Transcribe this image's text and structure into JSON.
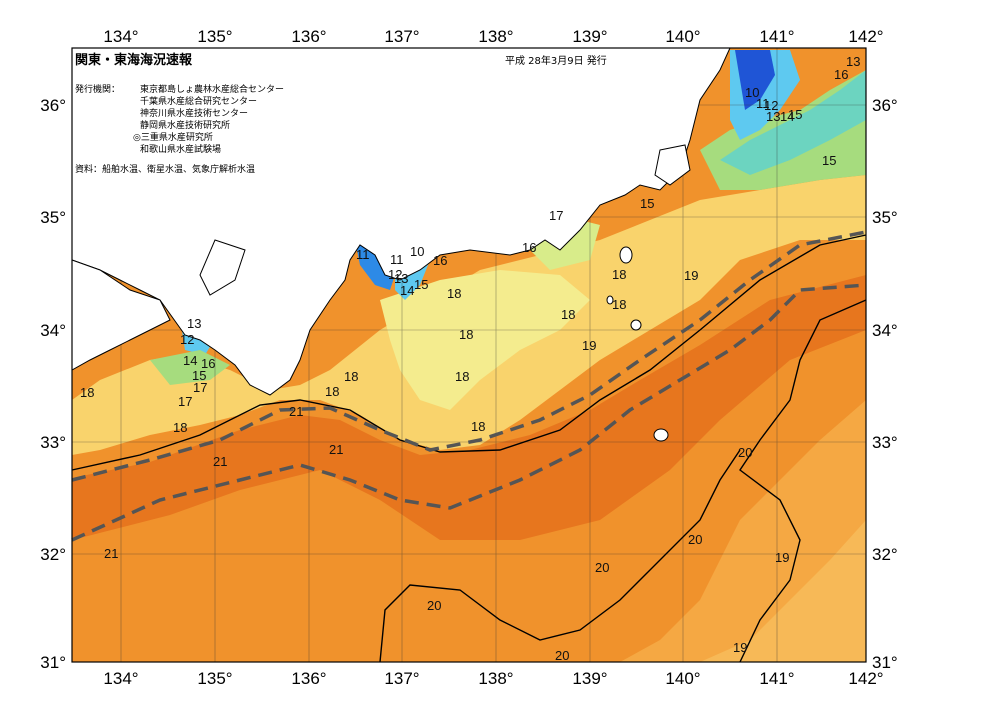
{
  "title": "関東・東海海況速報",
  "issue_date": "平成 28年3月9日 発行",
  "publishers_label": "発行機関：",
  "publishers": [
    "東京都島しょ農林水産総合センター",
    "千葉県水産総合研究センター",
    "神奈川県水産技術センター",
    "静岡県水産技術研究所",
    "◎三重県水産研究所",
    "和歌山県水産試験場"
  ],
  "source_note": "資料：船舶水温、衛星水温、気象庁解析水温",
  "longitudes": [
    "134°",
    "135°",
    "136°",
    "137°",
    "138°",
    "139°",
    "140°",
    "141°",
    "142°"
  ],
  "latitudes": [
    "36°",
    "35°",
    "34°",
    "33°",
    "32°",
    "31°"
  ],
  "isotherm_labels": [
    {
      "text": "10"
    },
    {
      "text": "11"
    },
    {
      "text": "12"
    },
    {
      "text": "13"
    },
    {
      "text": "14"
    },
    {
      "text": "15"
    },
    {
      "text": "16"
    },
    {
      "text": "13"
    },
    {
      "text": "15"
    },
    {
      "text": "17"
    },
    {
      "text": "15"
    },
    {
      "text": "16"
    },
    {
      "text": "18"
    },
    {
      "text": "18"
    },
    {
      "text": "18"
    },
    {
      "text": "19"
    },
    {
      "text": "19"
    },
    {
      "text": "11"
    },
    {
      "text": "11"
    },
    {
      "text": "10"
    },
    {
      "text": "12"
    },
    {
      "text": "13"
    },
    {
      "text": "14"
    },
    {
      "text": "15"
    },
    {
      "text": "16"
    },
    {
      "text": "18"
    },
    {
      "text": "18"
    },
    {
      "text": "18"
    },
    {
      "text": "18"
    },
    {
      "text": "18"
    },
    {
      "text": "13"
    },
    {
      "text": "12"
    },
    {
      "text": "14"
    },
    {
      "text": "16"
    },
    {
      "text": "15"
    },
    {
      "text": "17"
    },
    {
      "text": "17"
    },
    {
      "text": "18"
    },
    {
      "text": "18"
    },
    {
      "text": "18"
    },
    {
      "text": "21"
    },
    {
      "text": "21"
    },
    {
      "text": "21"
    },
    {
      "text": "21"
    },
    {
      "text": "20"
    },
    {
      "text": "20"
    },
    {
      "text": "20"
    },
    {
      "text": "20"
    },
    {
      "text": "20"
    },
    {
      "text": "19"
    },
    {
      "text": "19"
    }
  ],
  "colors": {
    "sea_warm_deep": "#e7761e",
    "sea_warm": "#f0922c",
    "sea_mid": "#f5a843",
    "sea_yellow": "#f9d36c",
    "sea_lightyellow": "#f4ec8e",
    "sea_green": "#a6dc7e",
    "sea_teal": "#6cd4c0",
    "sea_cyan": "#5ec9f0",
    "sea_blue": "#2d8ae6",
    "sea_deepblue": "#1f55d6",
    "land": "#ffffff",
    "current_axis": "#555555"
  }
}
